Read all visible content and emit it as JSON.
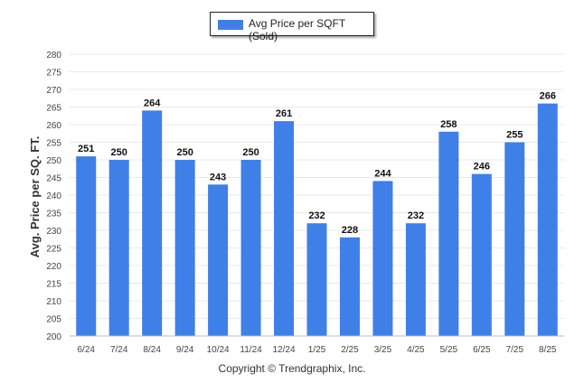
{
  "legend": {
    "label": "Avg Price per SQFT (Sold)",
    "color": "#3f7fe8"
  },
  "copyright": "Copyright © Trendgraphix, Inc.",
  "chart_data": {
    "type": "bar",
    "title": "",
    "xlabel": "",
    "ylabel": "Avg. Price per SQ. FT.",
    "ylim": [
      200,
      280
    ],
    "ytick_step": 5,
    "grid": true,
    "legend_position": "top-center",
    "categories": [
      "6/24",
      "7/24",
      "8/24",
      "9/24",
      "10/24",
      "11/24",
      "12/24",
      "1/25",
      "2/25",
      "3/25",
      "4/25",
      "5/25",
      "6/25",
      "7/25",
      "8/25"
    ],
    "series": [
      {
        "name": "Avg Price per SQFT (Sold)",
        "color": "#3f7fe8",
        "values": [
          251,
          250,
          264,
          250,
          243,
          250,
          261,
          232,
          228,
          244,
          232,
          258,
          246,
          255,
          266
        ]
      }
    ]
  }
}
